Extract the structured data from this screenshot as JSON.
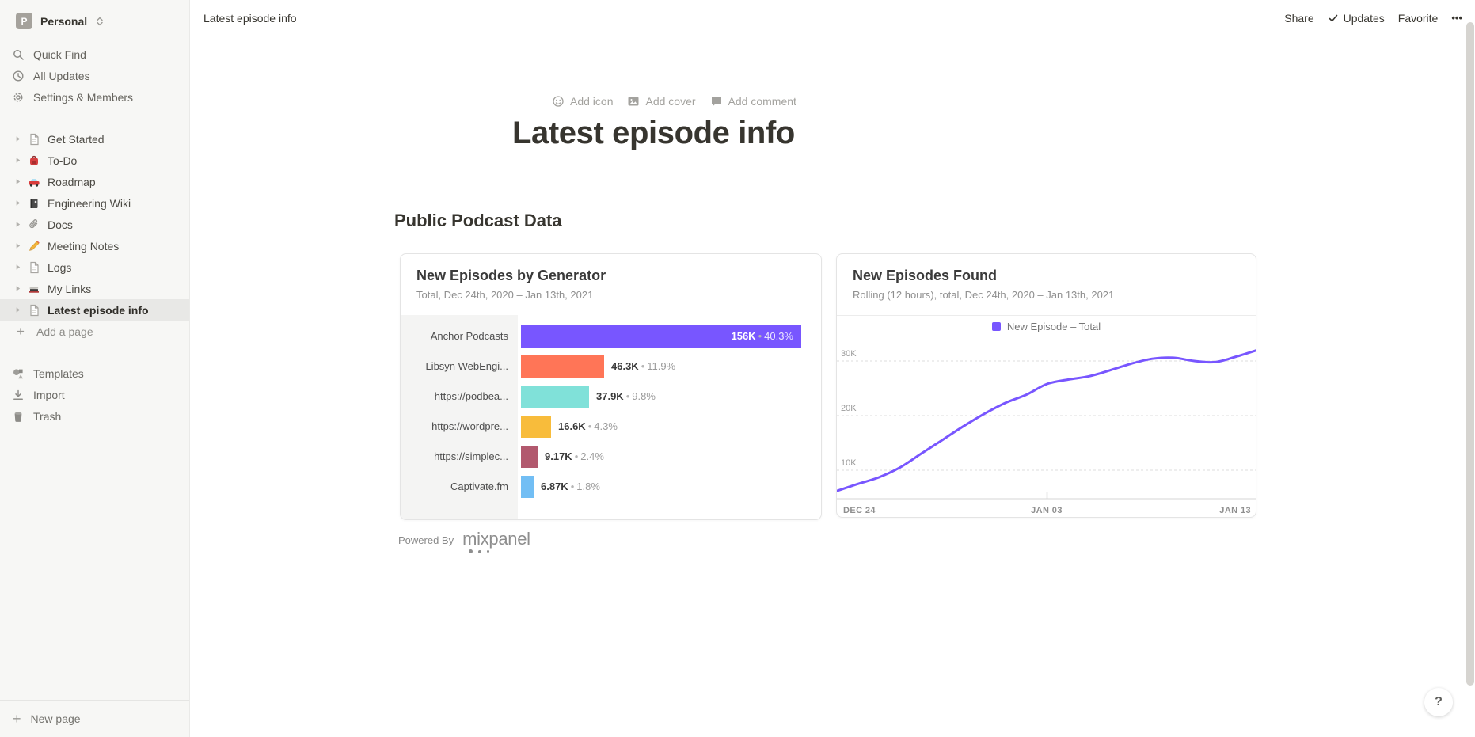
{
  "workspace": {
    "name": "Personal",
    "avatar_letter": "P"
  },
  "sidebar": {
    "menu": [
      {
        "label": "Quick Find",
        "icon": "search-icon"
      },
      {
        "label": "All Updates",
        "icon": "clock-icon"
      },
      {
        "label": "Settings & Members",
        "icon": "gear-icon"
      }
    ],
    "pages": [
      {
        "label": "Get Started",
        "icon": "page-icon",
        "selected": false
      },
      {
        "label": "To-Do",
        "icon": "backpack-icon",
        "selected": false
      },
      {
        "label": "Roadmap",
        "icon": "car-icon",
        "selected": false
      },
      {
        "label": "Engineering Wiki",
        "icon": "notebook-icon",
        "selected": false
      },
      {
        "label": "Docs",
        "icon": "paperclip-icon",
        "selected": false
      },
      {
        "label": "Meeting Notes",
        "icon": "pencil-icon",
        "selected": false
      },
      {
        "label": "Logs",
        "icon": "page-icon",
        "selected": false
      },
      {
        "label": "My Links",
        "icon": "books-icon",
        "selected": false
      },
      {
        "label": "Latest episode info",
        "icon": "page-icon",
        "selected": true
      }
    ],
    "add_page_label": "Add a page",
    "footer": [
      {
        "label": "Templates",
        "icon": "templates-icon"
      },
      {
        "label": "Import",
        "icon": "import-icon"
      },
      {
        "label": "Trash",
        "icon": "trash-icon"
      }
    ],
    "new_page_label": "New page"
  },
  "topbar": {
    "breadcrumb": "Latest episode info",
    "share_label": "Share",
    "updates_label": "Updates",
    "favorite_label": "Favorite",
    "more_label": "•••"
  },
  "page": {
    "controls": {
      "add_icon": "Add icon",
      "add_cover": "Add cover",
      "add_comment": "Add comment"
    },
    "title": "Latest episode info",
    "section_heading": "Public Podcast Data",
    "powered_by_label": "Powered By",
    "mixpanel_wordmark": "mixpanel",
    "help_button": "?"
  },
  "chart_data": [
    {
      "type": "bar",
      "orientation": "horizontal",
      "title": "New Episodes by Generator",
      "subtitle": "Total, Dec 24th, 2020 – Jan 13th, 2021",
      "categories": [
        "Anchor Podcasts",
        "Libsyn WebEngi...",
        "https://podbea...",
        "https://wordpre...",
        "https://simplec...",
        "Captivate.fm"
      ],
      "values": [
        156000,
        46300,
        37900,
        16600,
        9170,
        6870
      ],
      "value_labels": [
        "156K",
        "46.3K",
        "37.9K",
        "16.6K",
        "9.17K",
        "6.87K"
      ],
      "percent_labels": [
        "40.3%",
        "11.9%",
        "9.8%",
        "4.3%",
        "2.4%",
        "1.8%"
      ],
      "bar_colors": [
        "#7856ff",
        "#ff7557",
        "#80e1d9",
        "#f8bc3b",
        "#b2596e",
        "#72bef4"
      ],
      "xlim": [
        0,
        160000
      ]
    },
    {
      "type": "line",
      "title": "New Episodes Found",
      "subtitle": "Rolling (12 hours), total, Dec 24th, 2020 – Jan 13th, 2021",
      "legend": [
        {
          "label": "New Episode – Total",
          "color": "#7856ff"
        }
      ],
      "x_tick_labels": [
        "DEC 24",
        "JAN 03",
        "JAN 13"
      ],
      "y_tick_labels": [
        "10K",
        "20K",
        "30K"
      ],
      "ylim": [
        0,
        34000
      ],
      "grid": "dashed-horizontal",
      "series": [
        {
          "name": "New Episode – Total",
          "color": "#7856ff",
          "values": [
            6200,
            7500,
            8700,
            10500,
            13000,
            15500,
            18000,
            20300,
            22300,
            23800,
            25800,
            26600,
            27200,
            28300,
            29500,
            30400,
            30600,
            30000,
            29800,
            30800,
            32000
          ]
        }
      ]
    }
  ]
}
